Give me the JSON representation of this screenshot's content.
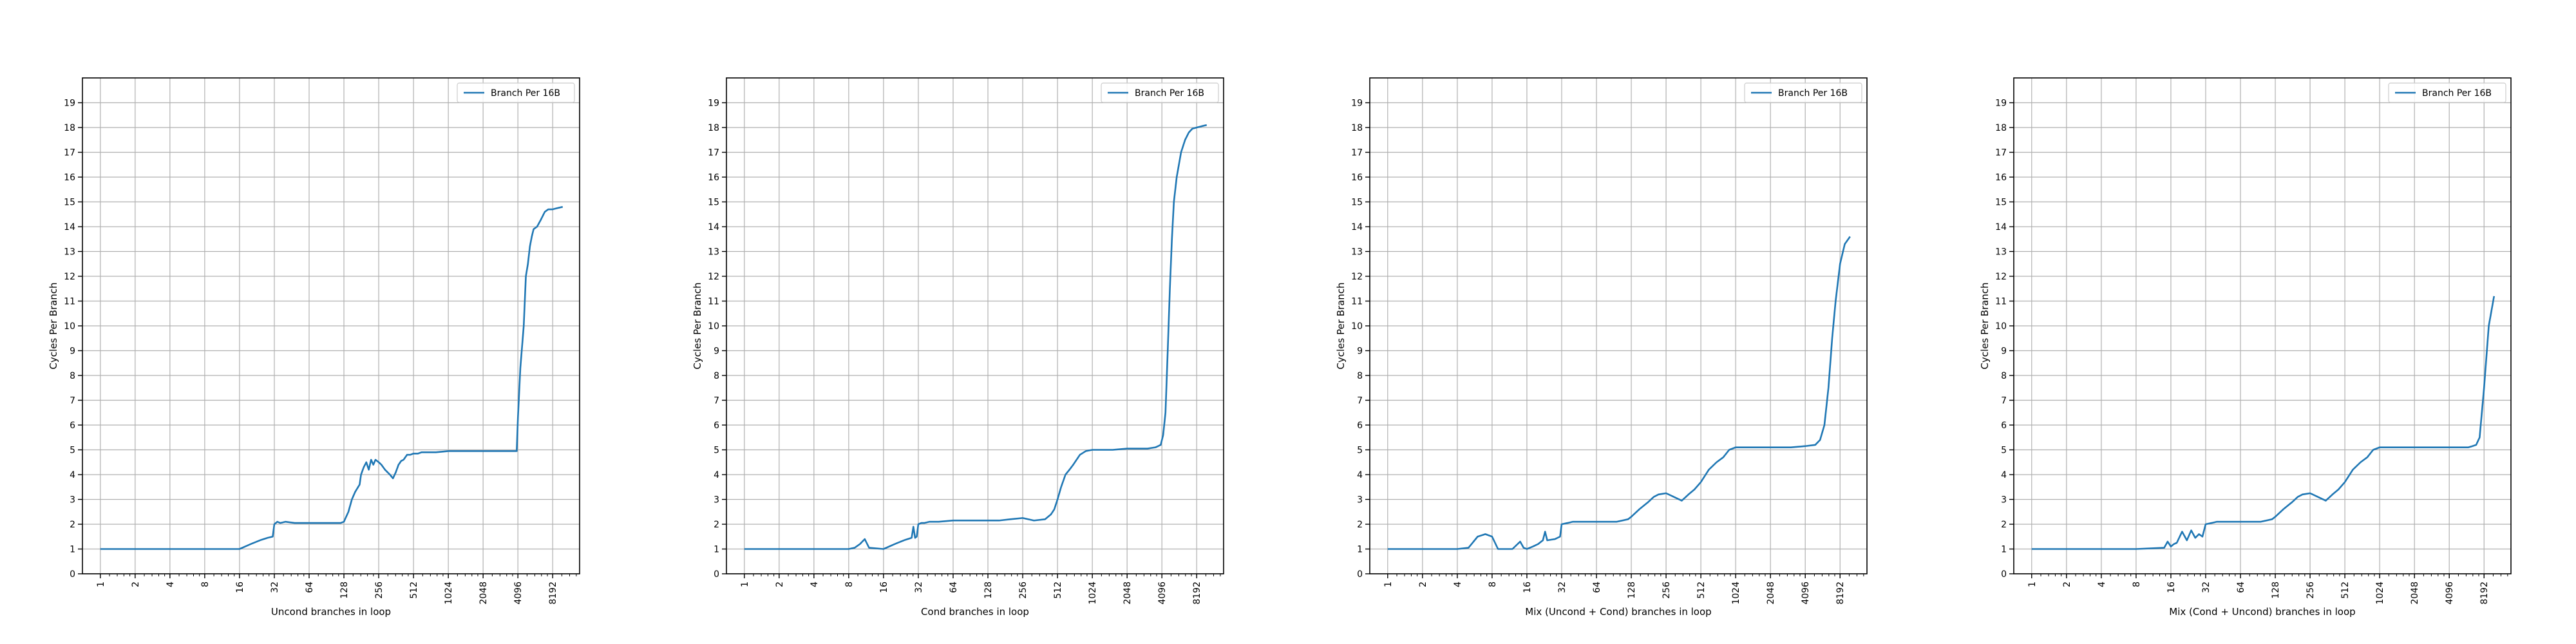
{
  "colors": {
    "series": "#1f77b4",
    "grid": "#b0b0b0",
    "axis": "#000000",
    "background": "#ffffff"
  },
  "chart_data": [
    {
      "type": "line",
      "title": "",
      "xlabel": "Uncond branches in loop",
      "ylabel": "Cycles Per Branch",
      "xscale": "log2",
      "xlim": [
        0.7,
        14000
      ],
      "ylim": [
        0,
        20
      ],
      "xticks": [
        1,
        2,
        4,
        8,
        16,
        32,
        64,
        128,
        256,
        512,
        1024,
        2048,
        4096,
        8192
      ],
      "xtick_labels": [
        "1",
        "2",
        "4",
        "8",
        "16",
        "32",
        "64",
        "128",
        "256",
        "512",
        "1024",
        "2048",
        "4096",
        "8192"
      ],
      "yticks": [
        0,
        1,
        2,
        3,
        4,
        5,
        6,
        7,
        8,
        9,
        10,
        11,
        12,
        13,
        14,
        15,
        16,
        17,
        18,
        19
      ],
      "ytick_labels": [
        "0",
        "1",
        "2",
        "3",
        "4",
        "5",
        "6",
        "7",
        "8",
        "9",
        "10",
        "11",
        "12",
        "13",
        "14",
        "15",
        "16",
        "17",
        "18",
        "19"
      ],
      "grid": true,
      "legend": "top-right",
      "series": [
        {
          "name": "Branch Per 16B",
          "x": [
            1,
            2,
            4,
            8,
            16,
            20,
            24,
            28,
            31,
            32,
            34,
            36,
            40,
            48,
            64,
            96,
            120,
            128,
            140,
            150,
            160,
            175,
            180,
            190,
            200,
            210,
            220,
            230,
            240,
            256,
            270,
            290,
            320,
            340,
            360,
            380,
            400,
            420,
            450,
            480,
            512,
            560,
            600,
            700,
            800,
            1024,
            1536,
            2048,
            3072,
            4000,
            4100,
            4300,
            4600,
            4800,
            5000,
            5200,
            5400,
            5600,
            6000,
            6500,
            7000,
            7500,
            8192,
            9000,
            10000
          ],
          "y": [
            1.0,
            1.0,
            1.0,
            1.0,
            1.0,
            1.2,
            1.35,
            1.45,
            1.5,
            2.0,
            2.1,
            2.05,
            2.1,
            2.05,
            2.05,
            2.05,
            2.05,
            2.1,
            2.5,
            3.0,
            3.3,
            3.6,
            4.0,
            4.3,
            4.5,
            4.2,
            4.6,
            4.4,
            4.6,
            4.5,
            4.4,
            4.2,
            4.0,
            3.85,
            4.1,
            4.4,
            4.55,
            4.6,
            4.8,
            4.8,
            4.85,
            4.85,
            4.9,
            4.9,
            4.9,
            4.95,
            4.95,
            4.95,
            4.95,
            4.95,
            6.3,
            8.3,
            10.0,
            12.0,
            12.5,
            13.2,
            13.6,
            13.9,
            14.0,
            14.3,
            14.6,
            14.7,
            14.7,
            14.75,
            14.8
          ]
        }
      ]
    },
    {
      "type": "line",
      "title": "",
      "xlabel": "Cond branches in loop",
      "ylabel": "Cycles Per Branch",
      "xscale": "log2",
      "xlim": [
        0.7,
        14000
      ],
      "ylim": [
        0,
        20
      ],
      "xticks": [
        1,
        2,
        4,
        8,
        16,
        32,
        64,
        128,
        256,
        512,
        1024,
        2048,
        4096,
        8192
      ],
      "xtick_labels": [
        "1",
        "2",
        "4",
        "8",
        "16",
        "32",
        "64",
        "128",
        "256",
        "512",
        "1024",
        "2048",
        "4096",
        "8192"
      ],
      "yticks": [
        0,
        1,
        2,
        3,
        4,
        5,
        6,
        7,
        8,
        9,
        10,
        11,
        12,
        13,
        14,
        15,
        16,
        17,
        18,
        19
      ],
      "ytick_labels": [
        "0",
        "1",
        "2",
        "3",
        "4",
        "5",
        "6",
        "7",
        "8",
        "9",
        "10",
        "11",
        "12",
        "13",
        "14",
        "15",
        "16",
        "17",
        "18",
        "19"
      ],
      "grid": true,
      "legend": "top-right",
      "series": [
        {
          "name": "Branch Per 16B",
          "x": [
            1,
            2,
            4,
            8,
            9,
            10,
            11,
            12,
            16,
            20,
            24,
            28,
            29,
            30,
            31,
            32,
            34,
            36,
            40,
            48,
            64,
            96,
            128,
            160,
            200,
            256,
            320,
            400,
            450,
            480,
            512,
            550,
            600,
            650,
            700,
            800,
            900,
            1024,
            1536,
            2048,
            3072,
            3600,
            4000,
            4200,
            4400,
            4600,
            4800,
            5000,
            5200,
            5500,
            6000,
            6500,
            7000,
            7500,
            8192,
            9000,
            10000
          ],
          "y": [
            1.0,
            1.0,
            1.0,
            1.0,
            1.05,
            1.2,
            1.4,
            1.05,
            1.0,
            1.2,
            1.35,
            1.45,
            1.9,
            1.45,
            1.5,
            2.0,
            2.05,
            2.05,
            2.1,
            2.1,
            2.15,
            2.15,
            2.15,
            2.15,
            2.2,
            2.25,
            2.15,
            2.2,
            2.4,
            2.6,
            3.0,
            3.5,
            4.0,
            4.2,
            4.4,
            4.8,
            4.95,
            5.0,
            5.0,
            5.05,
            5.05,
            5.1,
            5.2,
            5.6,
            6.5,
            9.0,
            11.5,
            13.5,
            15.0,
            16.0,
            17.0,
            17.5,
            17.8,
            17.95,
            18.0,
            18.05,
            18.1
          ]
        }
      ]
    },
    {
      "type": "line",
      "title": "",
      "xlabel": "Mix (Uncond + Cond) branches in loop",
      "ylabel": "Cycles Per Branch",
      "xscale": "log2",
      "xlim": [
        0.7,
        14000
      ],
      "ylim": [
        0,
        20
      ],
      "xticks": [
        1,
        2,
        4,
        8,
        16,
        32,
        64,
        128,
        256,
        512,
        1024,
        2048,
        4096,
        8192
      ],
      "xtick_labels": [
        "1",
        "2",
        "4",
        "8",
        "16",
        "32",
        "64",
        "128",
        "256",
        "512",
        "1024",
        "2048",
        "4096",
        "8192"
      ],
      "yticks": [
        0,
        1,
        2,
        3,
        4,
        5,
        6,
        7,
        8,
        9,
        10,
        11,
        12,
        13,
        14,
        15,
        16,
        17,
        18,
        19
      ],
      "ytick_labels": [
        "0",
        "1",
        "2",
        "3",
        "4",
        "5",
        "6",
        "7",
        "8",
        "9",
        "10",
        "11",
        "12",
        "13",
        "14",
        "15",
        "16",
        "17",
        "18",
        "19"
      ],
      "grid": true,
      "legend": "top-right",
      "series": [
        {
          "name": "Branch Per 16B",
          "x": [
            1,
            2,
            4,
            5,
            6,
            7,
            8,
            9,
            10,
            12,
            14,
            15,
            16,
            18,
            20,
            22,
            23,
            24,
            28,
            31,
            32,
            36,
            40,
            48,
            64,
            96,
            120,
            128,
            150,
            180,
            200,
            220,
            256,
            300,
            350,
            400,
            450,
            512,
            600,
            700,
            800,
            900,
            1024,
            1536,
            2048,
            3072,
            4096,
            5000,
            5500,
            6000,
            6500,
            7000,
            7500,
            8192,
            9000,
            10000
          ],
          "y": [
            1.0,
            1.0,
            1.0,
            1.05,
            1.5,
            1.6,
            1.5,
            1.0,
            1.0,
            1.0,
            1.3,
            1.05,
            1.0,
            1.1,
            1.2,
            1.35,
            1.7,
            1.35,
            1.4,
            1.5,
            2.0,
            2.05,
            2.1,
            2.1,
            2.1,
            2.1,
            2.2,
            2.3,
            2.6,
            2.9,
            3.1,
            3.2,
            3.25,
            3.1,
            2.95,
            3.2,
            3.4,
            3.7,
            4.2,
            4.5,
            4.7,
            5.0,
            5.1,
            5.1,
            5.1,
            5.1,
            5.15,
            5.2,
            5.4,
            6.0,
            7.5,
            9.5,
            11.0,
            12.5,
            13.3,
            13.6
          ]
        }
      ]
    },
    {
      "type": "line",
      "title": "",
      "xlabel": "Mix (Cond + Uncond) branches in loop",
      "ylabel": "Cycles Per Branch",
      "xscale": "log2",
      "xlim": [
        0.7,
        14000
      ],
      "ylim": [
        0,
        20
      ],
      "xticks": [
        1,
        2,
        4,
        8,
        16,
        32,
        64,
        128,
        256,
        512,
        1024,
        2048,
        4096,
        8192
      ],
      "xtick_labels": [
        "1",
        "2",
        "4",
        "8",
        "16",
        "32",
        "64",
        "128",
        "256",
        "512",
        "1024",
        "2048",
        "4096",
        "8192"
      ],
      "yticks": [
        0,
        1,
        2,
        3,
        4,
        5,
        6,
        7,
        8,
        9,
        10,
        11,
        12,
        13,
        14,
        15,
        16,
        17,
        18,
        19
      ],
      "ytick_labels": [
        "0",
        "1",
        "2",
        "3",
        "4",
        "5",
        "6",
        "7",
        "8",
        "9",
        "10",
        "11",
        "12",
        "13",
        "14",
        "15",
        "16",
        "17",
        "18",
        "19"
      ],
      "grid": true,
      "legend": "top-right",
      "series": [
        {
          "name": "Branch Per 16B",
          "x": [
            1,
            2,
            4,
            8,
            14,
            15,
            16,
            17,
            18,
            20,
            22,
            24,
            26,
            28,
            30,
            32,
            36,
            40,
            48,
            64,
            96,
            120,
            128,
            150,
            180,
            200,
            220,
            256,
            300,
            350,
            400,
            450,
            512,
            600,
            700,
            800,
            900,
            1024,
            1536,
            2048,
            3072,
            4096,
            5000,
            5500,
            6000,
            6500,
            7000,
            7500,
            8192,
            9000,
            10000
          ],
          "y": [
            1.0,
            1.0,
            1.0,
            1.0,
            1.05,
            1.3,
            1.1,
            1.2,
            1.25,
            1.7,
            1.35,
            1.75,
            1.45,
            1.6,
            1.5,
            2.0,
            2.05,
            2.1,
            2.1,
            2.1,
            2.1,
            2.2,
            2.3,
            2.6,
            2.9,
            3.1,
            3.2,
            3.25,
            3.1,
            2.95,
            3.2,
            3.4,
            3.7,
            4.2,
            4.5,
            4.7,
            5.0,
            5.1,
            5.1,
            5.1,
            5.1,
            5.1,
            5.1,
            5.1,
            5.1,
            5.15,
            5.2,
            5.5,
            7.5,
            10.0,
            11.2
          ]
        }
      ]
    }
  ]
}
